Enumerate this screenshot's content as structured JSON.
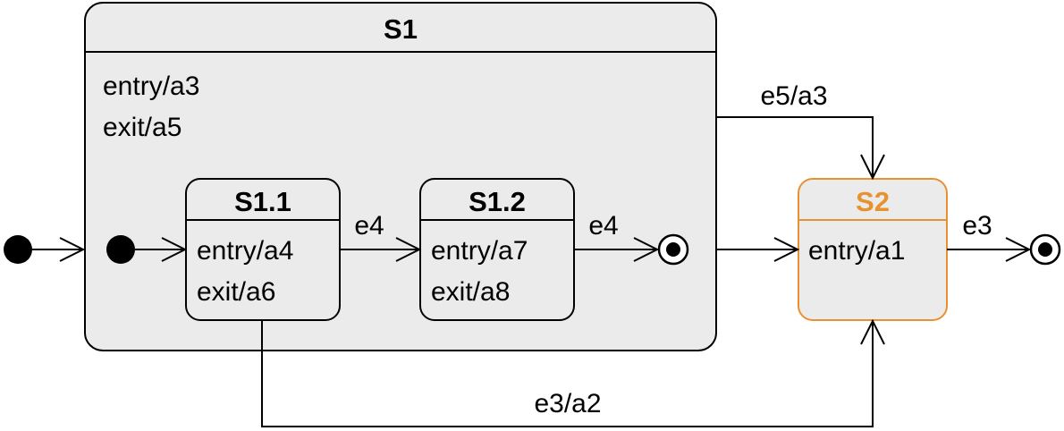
{
  "colors": {
    "state_fill": "#ebebeb",
    "highlight": "#e8922f",
    "line": "#000000"
  },
  "states": {
    "s1": {
      "name": "S1",
      "entry": "entry/a3",
      "exit": "exit/a5"
    },
    "s1_1": {
      "name": "S1.1",
      "entry": "entry/a4",
      "exit": "exit/a6"
    },
    "s1_2": {
      "name": "S1.2",
      "entry": "entry/a7",
      "exit": "exit/a8"
    },
    "s2": {
      "name": "S2",
      "entry": "entry/a1"
    }
  },
  "transitions": {
    "s1_1_to_s1_2": "e4",
    "s1_2_to_final": "e4",
    "s1_to_s2_top": "e5/a3",
    "s2_to_final": "e3",
    "s1_1_to_s2_bottom": "e3/a2"
  }
}
